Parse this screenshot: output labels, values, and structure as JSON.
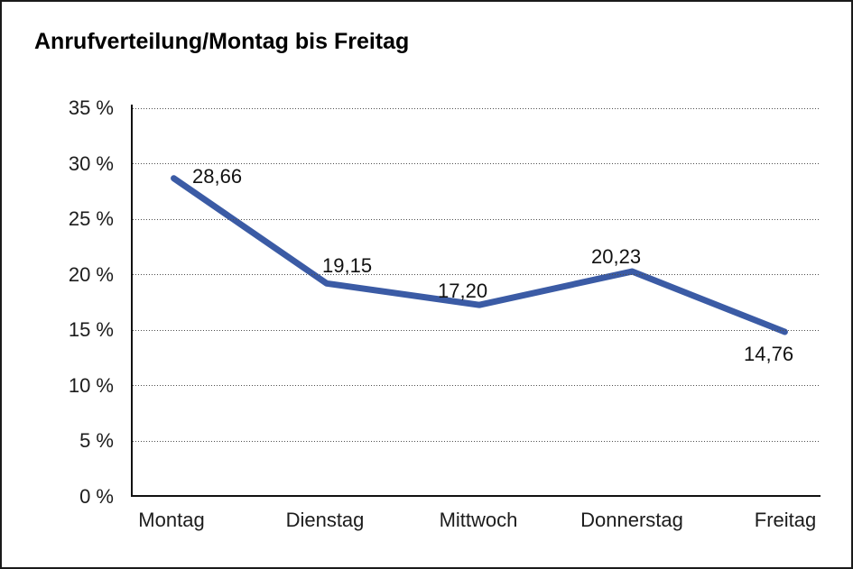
{
  "title": "Anrufverteilung/Montag bis Freitag",
  "chart_data": {
    "type": "line",
    "title": "Anrufverteilung/Montag bis Freitag",
    "categories": [
      "Montag",
      "Dienstag",
      "Mittwoch",
      "Donnerstag",
      "Freitag"
    ],
    "values": [
      28.66,
      19.15,
      17.2,
      20.23,
      14.76
    ],
    "value_labels": [
      "28,66",
      "19,15",
      "17,20",
      "20,23",
      "14,76"
    ],
    "xlabel": "",
    "ylabel": "",
    "ylim": [
      0,
      35
    ],
    "ytick_step": 5,
    "ytick_labels": [
      "0 %",
      "5 %",
      "10 %",
      "15 %",
      "20 %",
      "25 %",
      "30 %",
      "35 %"
    ],
    "grid": "horizontal-dotted",
    "legend_position": "none",
    "series_color": "#3B5BA5"
  },
  "colors": {
    "line": "#3B5BA5",
    "text": "#1c1c1c",
    "grid_dots": "#4f4f4f",
    "axis": "#111111",
    "frame_border": "#1a1a1a",
    "background": "#ffffff"
  }
}
